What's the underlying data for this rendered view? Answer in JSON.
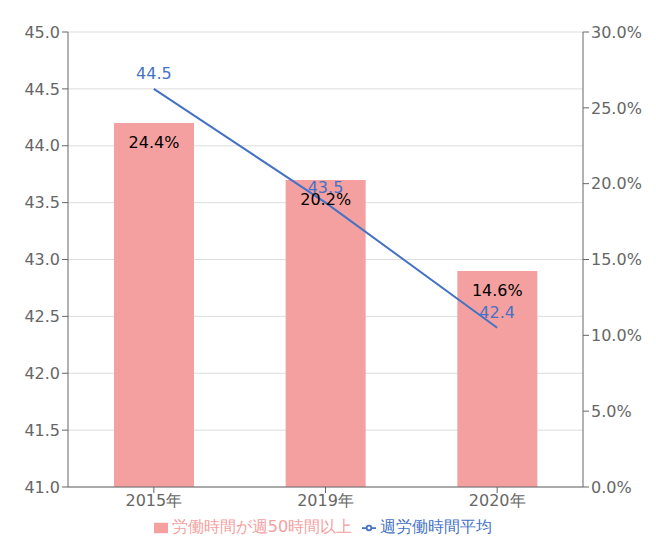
{
  "chart_data": {
    "type": "bar",
    "categories": [
      "2015年",
      "2019年",
      "2020年"
    ],
    "series": [
      {
        "name": "労働時間が週50時間以上",
        "type": "bar",
        "color": "#F4A0A0",
        "values": [
          44.2,
          43.7,
          42.9
        ]
      },
      {
        "name": "週労働時間平均",
        "type": "line",
        "color": "#4472C4",
        "values": [
          44.5,
          43.5,
          42.4
        ],
        "data_labels": true
      }
    ],
    "ylim": [
      41.0,
      45.0
    ],
    "yticks": [
      {
        "value": 41.0,
        "label": "41.0"
      },
      41.5,
      {
        "value": 42.0,
        "label": "42.0"
      },
      42.5,
      {
        "value": 43.0,
        "label": "43.0"
      },
      43.5,
      {
        "value": 44.0,
        "label": "44.0"
      },
      44.5,
      {
        "value": 45.0,
        "label": "45.0"
      }
    ],
    "y2lim": [
      0.0,
      0.3
    ],
    "y2ticks": [
      {
        "value": 0.0,
        "label": "0.0%"
      },
      {
        "value": 0.05,
        "label": "5.0%"
      },
      {
        "value": 0.1,
        "label": "10.0%"
      },
      {
        "value": 0.15,
        "label": "15.0%"
      },
      {
        "value": 0.2,
        "label": "20.0%"
      },
      {
        "value": 0.25,
        "label": "25.0%"
      },
      {
        "value": 0.3,
        "label": "30.0%"
      }
    ],
    "annotations": [
      {
        "text": "24.4%",
        "x": "2015年"
      },
      {
        "text": "20.2%",
        "x": "2019年"
      },
      {
        "text": "14.6%",
        "x": "2020年"
      }
    ],
    "grid": true,
    "legend": "bottom"
  }
}
